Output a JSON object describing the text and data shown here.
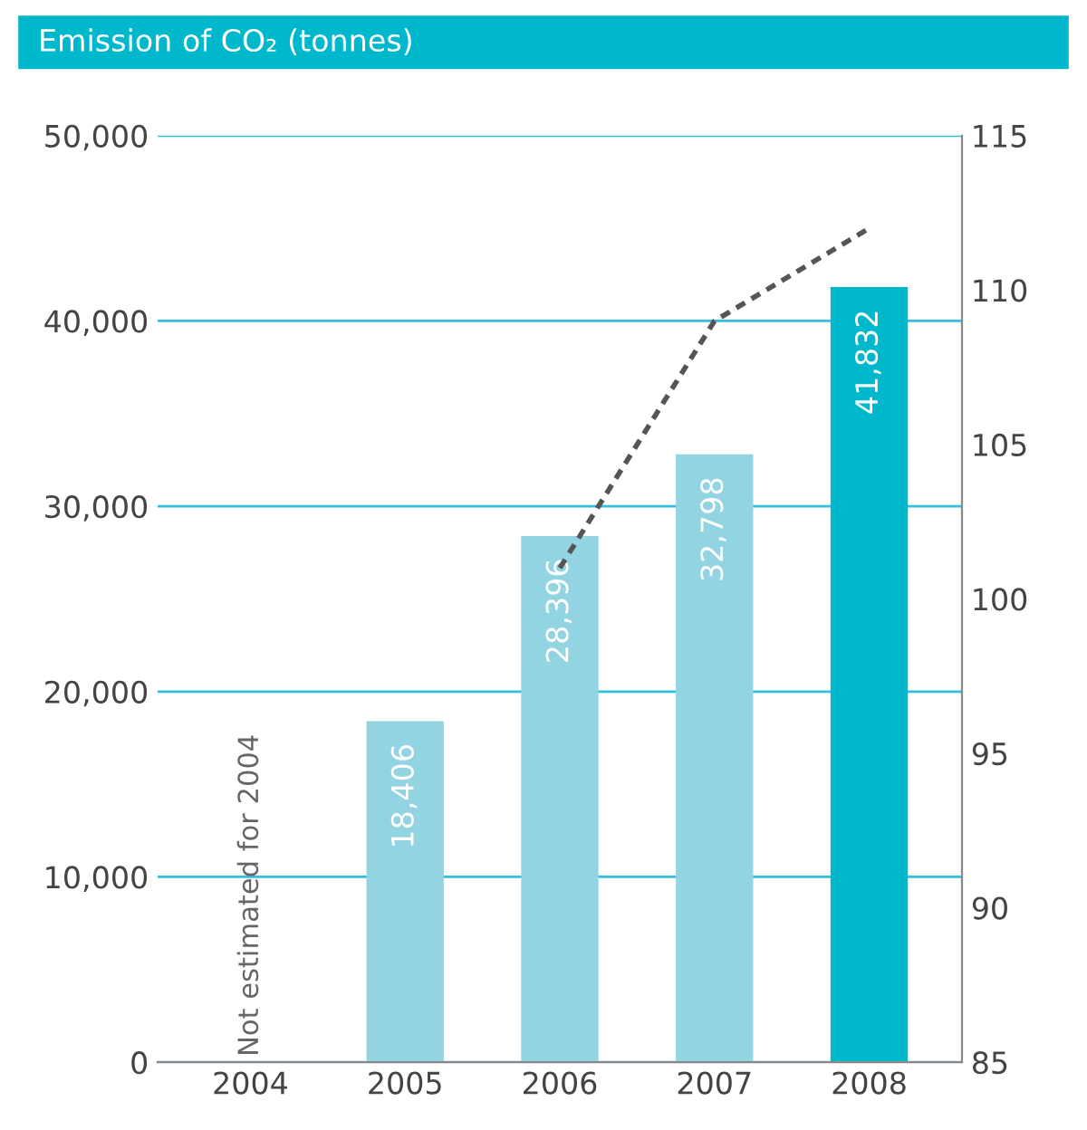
{
  "chart_data": {
    "type": "bar",
    "title": "Emission of CO₂ (tonnes)",
    "categories": [
      "2004",
      "2005",
      "2006",
      "2007",
      "2008"
    ],
    "series": [
      {
        "colors": [
          "#93d4e2",
          "#93d4e2",
          "#93d4e2",
          "#93d4e2",
          "#00b8cc"
        ],
        "values": [
          null,
          18406,
          28396,
          32798,
          41832
        ],
        "value_labels": [
          null,
          "18,406",
          "28,396",
          "32,798",
          "41,832"
        ]
      },
      {
        "type": "line",
        "axis": "y2",
        "color": "#555555",
        "line_style": "dashed",
        "values": [
          null,
          null,
          101,
          109,
          112
        ]
      }
    ],
    "ylim": [
      0,
      50000
    ],
    "yticks": [
      {
        "value": 0,
        "label": "0"
      },
      {
        "value": 10000,
        "label": "10,000"
      },
      {
        "value": 20000,
        "label": "20,000"
      },
      {
        "value": 30000,
        "label": "30,000"
      },
      {
        "value": 40000,
        "label": "40,000"
      },
      {
        "value": 50000,
        "label": "50,000"
      }
    ],
    "y2lim": [
      85,
      115
    ],
    "y2ticks": [
      85,
      90,
      95,
      100,
      105,
      110,
      115
    ],
    "grid": "y",
    "annotations": [
      "Not estimated for 2004"
    ]
  }
}
